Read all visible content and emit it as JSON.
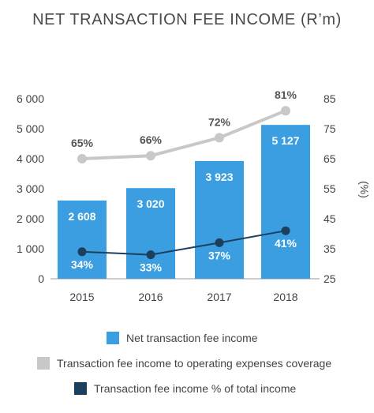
{
  "chart_data": {
    "type": "bar",
    "title": "NET TRANSACTION FEE INCOME (R’m)",
    "categories": [
      "2015",
      "2016",
      "2017",
      "2018"
    ],
    "ylim": [
      0,
      6000
    ],
    "y_ticks": [
      "0",
      "1 000",
      "2 000",
      "3 000",
      "4 000",
      "5 000",
      "6 000"
    ],
    "y2lim": [
      25,
      85
    ],
    "y2_ticks": [
      "25",
      "35",
      "45",
      "55",
      "65",
      "75",
      "85"
    ],
    "y2label": "(%)",
    "grid": false,
    "legend_position": "bottom",
    "series": [
      {
        "name": "Net transaction fee income",
        "kind": "bar",
        "axis": "left",
        "color": "#3a9ee0",
        "values": [
          2608,
          3020,
          3923,
          5127
        ],
        "labels": [
          "2 608",
          "3 020",
          "3 923",
          "5 127"
        ]
      },
      {
        "name": "Transaction fee income to operating expenses coverage",
        "kind": "line",
        "axis": "right",
        "color": "#c8c8c8",
        "values": [
          65,
          66,
          72,
          81
        ],
        "labels": [
          "65%",
          "66%",
          "72%",
          "81%"
        ]
      },
      {
        "name": "Transaction fee income % of total income",
        "kind": "line",
        "axis": "right",
        "color": "#1c3f5e",
        "values": [
          34,
          33,
          37,
          41
        ],
        "labels": [
          "34%",
          "33%",
          "37%",
          "41%"
        ]
      }
    ]
  }
}
